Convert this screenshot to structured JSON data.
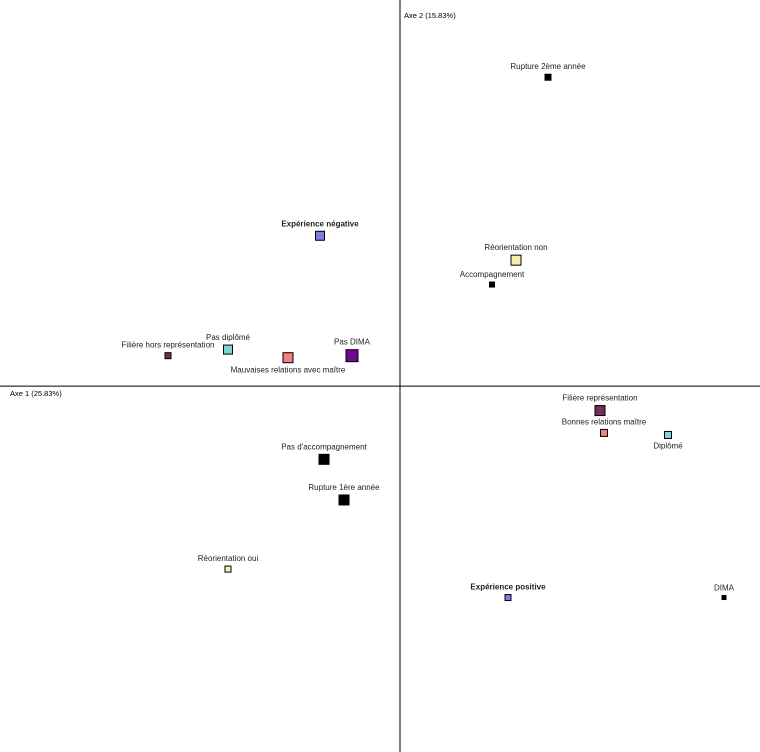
{
  "chart_data": {
    "type": "scatter",
    "xlabel": "Axe 1 (25.83%)",
    "ylabel": "Axe 2 (15.83%)",
    "xlim": [
      -1.0,
      0.9
    ],
    "ylim": [
      -0.9,
      0.95
    ],
    "grid": false,
    "points": [
      {
        "label": "Rupture 2ème année",
        "x": 0.37,
        "y": 0.76,
        "color": "#000000",
        "size": 6,
        "bold": false,
        "label_side": "above"
      },
      {
        "label": "Expérience négative",
        "x": -0.2,
        "y": 0.37,
        "color": "#7b7fe0",
        "size": 9,
        "bold": true,
        "label_side": "above"
      },
      {
        "label": "Réorientation non",
        "x": 0.29,
        "y": 0.31,
        "color": "#f4f0a6",
        "size": 10,
        "bold": false,
        "label_side": "above"
      },
      {
        "label": "Accompagnement",
        "x": 0.23,
        "y": 0.25,
        "color": "#000000",
        "size": 5,
        "bold": false,
        "label_side": "above"
      },
      {
        "label": "Filière hors représentation",
        "x": -0.58,
        "y": 0.075,
        "color": "#7a2a4a",
        "size": 6,
        "bold": false,
        "label_side": "above"
      },
      {
        "label": "Pas diplômé",
        "x": -0.43,
        "y": 0.09,
        "color": "#7fd4d4",
        "size": 9,
        "bold": false,
        "label_side": "above"
      },
      {
        "label": "Mauvaises relations avec maître",
        "x": -0.28,
        "y": 0.07,
        "color": "#f47f7f",
        "size": 10,
        "bold": false,
        "label_side": "below"
      },
      {
        "label": "Pas DIMA",
        "x": -0.12,
        "y": 0.075,
        "color": "#6a0a8a",
        "size": 12,
        "bold": false,
        "label_side": "above"
      },
      {
        "label": "Filière représentation",
        "x": 0.5,
        "y": -0.06,
        "color": "#7a2a5a",
        "size": 10,
        "bold": false,
        "label_side": "above"
      },
      {
        "label": "Bonnes relations maître",
        "x": 0.51,
        "y": -0.115,
        "color": "#f47f7f",
        "size": 7,
        "bold": false,
        "label_side": "above"
      },
      {
        "label": "Diplômé",
        "x": 0.67,
        "y": -0.12,
        "color": "#7fd4d4",
        "size": 7,
        "bold": false,
        "label_side": "below"
      },
      {
        "label": "Pas d'accompagnement",
        "x": -0.19,
        "y": -0.18,
        "color": "#000000",
        "size": 10,
        "bold": false,
        "label_side": "above"
      },
      {
        "label": "Rupture 1ère année",
        "x": -0.14,
        "y": -0.28,
        "color": "#000000",
        "size": 10,
        "bold": false,
        "label_side": "above"
      },
      {
        "label": "Réorientation oui",
        "x": -0.43,
        "y": -0.45,
        "color": "#f4f0a6",
        "size": 6,
        "bold": false,
        "label_side": "above"
      },
      {
        "label": "Expérience positive",
        "x": 0.27,
        "y": -0.52,
        "color": "#7b7fe0",
        "size": 6,
        "bold": true,
        "label_side": "above"
      },
      {
        "label": "DIMA",
        "x": 0.81,
        "y": -0.52,
        "color": "#000000",
        "size": 4,
        "bold": false,
        "label_side": "above"
      }
    ]
  }
}
